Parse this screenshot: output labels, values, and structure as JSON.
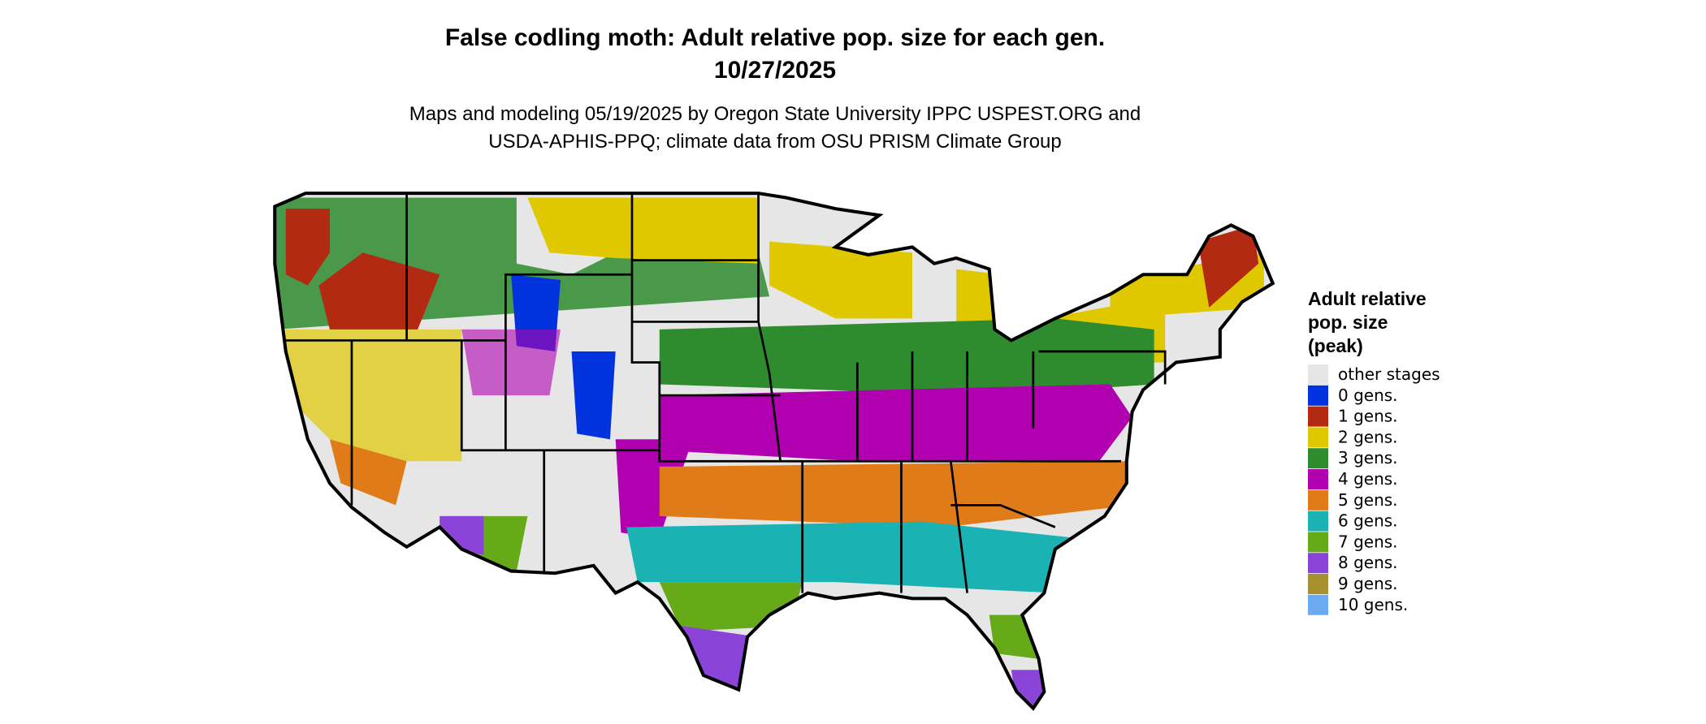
{
  "header": {
    "title": [
      "False codling moth: Adult relative pop. size for each gen.",
      "10/27/2025"
    ],
    "subtitle": [
      "Maps and modeling 05/19/2025 by Oregon State University IPPC USPEST.ORG and",
      "USDA-APHIS-PPQ; climate data from OSU PRISM Climate Group"
    ]
  },
  "legend": {
    "title": [
      "Adult relative",
      "pop. size",
      "(peak)"
    ],
    "items": [
      {
        "label": "other stages",
        "color": "#e6e6e6"
      },
      {
        "label": "0 gens.",
        "color": "#0033dd"
      },
      {
        "label": "1 gens.",
        "color": "#b22a12"
      },
      {
        "label": "2 gens.",
        "color": "#e0c800"
      },
      {
        "label": "3 gens.",
        "color": "#2e8b2e"
      },
      {
        "label": "4 gens.",
        "color": "#b000b0"
      },
      {
        "label": "5 gens.",
        "color": "#e07b1a"
      },
      {
        "label": "6 gens.",
        "color": "#1ab2b2"
      },
      {
        "label": "7 gens.",
        "color": "#66aa1a"
      },
      {
        "label": "8 gens.",
        "color": "#8a44d8"
      },
      {
        "label": "9 gens.",
        "color": "#a89030"
      },
      {
        "label": "10 gens.",
        "color": "#6aaaf0"
      }
    ]
  }
}
